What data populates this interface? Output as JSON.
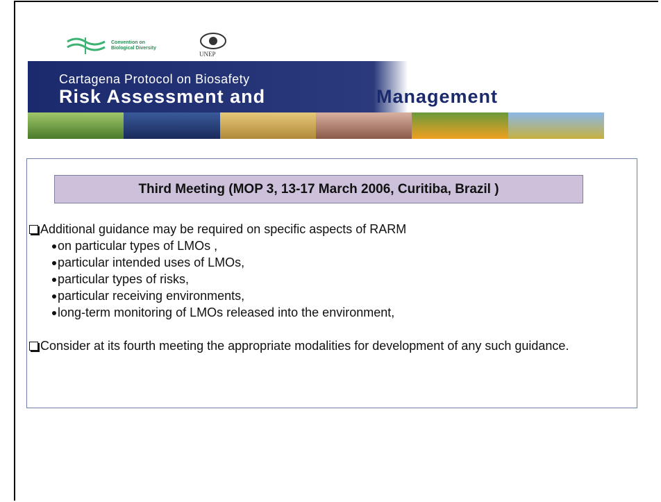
{
  "header": {
    "cbd_logo": [
      "Convention on",
      "Biological Diversity"
    ],
    "unep_logo": "UNEP",
    "subtitle": "Cartagena Protocol on Biosafety",
    "title": [
      "Risk Assessment and",
      "Management"
    ]
  },
  "box": {
    "heading": "Third Meeting (MOP 3,  13-17 March 2006, Curitiba, Brazil )",
    "items": [
      {
        "text": "Additional guidance may be required on specific aspects of RARM",
        "subitems": [
          "on particular types of LMOs ,",
          "particular intended uses of LMOs,",
          "particular types of risks,",
          "particular receiving environments,",
          "long-term monitoring of LMOs released into the environment,"
        ]
      },
      {
        "text": "Consider at its fourth meeting the appropriate modalities for development of any such guidance.",
        "subitems": []
      }
    ]
  }
}
